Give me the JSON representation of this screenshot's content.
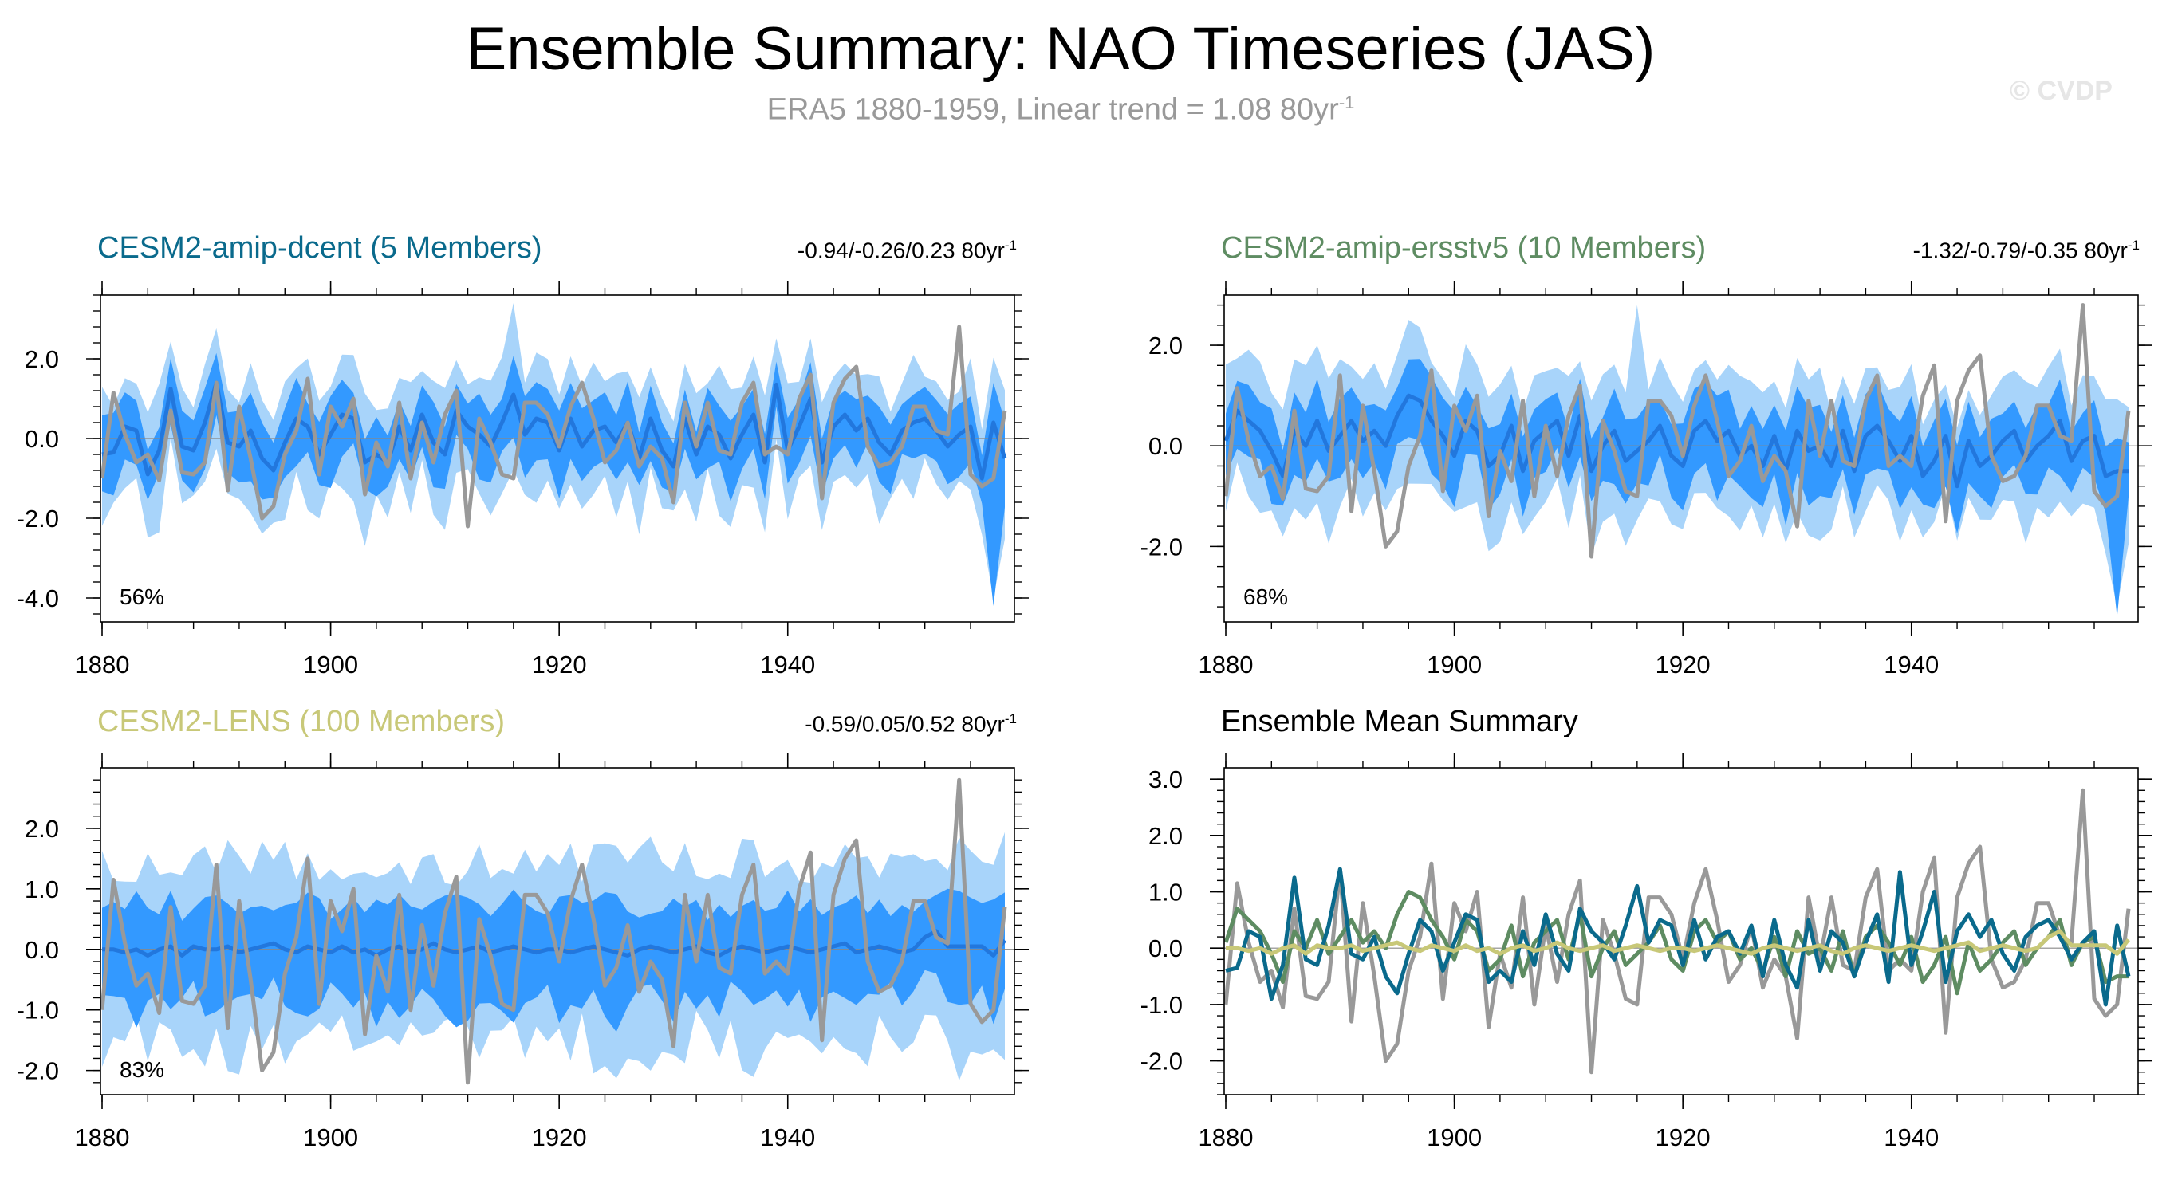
{
  "title": "Ensemble Summary: NAO Timeseries (JAS)",
  "subtitle": {
    "text": "ERA5 1880-1959, Linear trend = 1.08 80yr",
    "sup": "-1"
  },
  "watermark": "© CVDP",
  "colors": {
    "obs": "#999999",
    "dcent": "#0a6a8c",
    "ersst": "#5e8c62",
    "lens": "#c8c878",
    "band_outer": "#a8d4fa",
    "band_inner": "#3399ff",
    "ens_mean": "#2277dd"
  },
  "obs_series": [
    -1.0,
    1.15,
    0.1,
    -0.6,
    -0.4,
    -1.05,
    0.7,
    -0.85,
    -0.9,
    -0.6,
    1.4,
    -1.3,
    0.8,
    -0.5,
    -2.0,
    -1.7,
    -0.4,
    0.2,
    1.5,
    -0.9,
    0.8,
    0.3,
    1.0,
    -1.4,
    -0.1,
    -0.7,
    0.9,
    -1.0,
    0.4,
    -0.6,
    0.6,
    1.2,
    -2.2,
    0.5,
    -0.1,
    -0.9,
    -1.0,
    0.9,
    0.9,
    0.6,
    -0.2,
    0.8,
    1.4,
    0.5,
    -0.6,
    -0.3,
    0.4,
    -0.7,
    -0.2,
    -0.5,
    -1.6,
    0.9,
    -0.2,
    0.9,
    -0.3,
    -0.4,
    0.9,
    1.4,
    -0.4,
    -0.2,
    -0.4,
    1.0,
    1.6,
    -1.5,
    0.9,
    1.5,
    1.8,
    -0.2,
    -0.7,
    -0.6,
    -0.2,
    0.8,
    0.8,
    0.2,
    0.1,
    2.8,
    -0.9,
    -1.2,
    -1.0,
    0.7
  ],
  "panels": [
    {
      "id": "dcent",
      "title": "CESM2-amip-dcent (5 Members)",
      "trend": {
        "text": "-0.94/-0.26/0.23 80yr",
        "sup": "-1"
      },
      "percent": "56%",
      "chart_data": {
        "type": "area",
        "x_range": [
          1880,
          1959
        ],
        "ylim": [
          -4.6,
          3.6
        ],
        "yticks": [
          {
            "v": 2.0,
            "label": "2.0"
          },
          {
            "v": 0.0,
            "label": "0.0"
          },
          {
            "v": -2.0,
            "label": "-2.0"
          },
          {
            "v": -4.0,
            "label": "-4.0"
          }
        ],
        "xticks": [
          {
            "v": 1880,
            "label": "1880"
          },
          {
            "v": 1900,
            "label": "1900"
          },
          {
            "v": 1920,
            "label": "1920"
          },
          {
            "v": 1940,
            "label": "1940"
          }
        ],
        "series": [
          {
            "values": [
              -0.4,
              -0.35,
              0.3,
              0.2,
              -0.9,
              -0.3,
              1.25,
              -0.2,
              -0.3,
              0.4,
              1.4,
              -0.1,
              -0.2,
              0.2,
              -0.5,
              -0.8,
              -0.1,
              0.5,
              0.3,
              -0.4,
              0.1,
              0.6,
              0.5,
              -0.6,
              -0.4,
              -0.6,
              0.3,
              -0.3,
              0.6,
              -0.1,
              -0.4,
              0.7,
              0.3,
              0.1,
              -0.2,
              0.4,
              1.1,
              0.1,
              0.5,
              0.4,
              -0.3,
              0.5,
              -0.2,
              0.2,
              0.3,
              -0.1,
              0.4,
              -0.5,
              0.5,
              -0.3,
              -0.7,
              0.5,
              -0.4,
              0.3,
              0.1,
              -0.5,
              0.1,
              0.6,
              -0.6,
              1.35,
              -0.3,
              0.3,
              1.0,
              -0.6,
              0.3,
              0.6,
              0.2,
              0.5,
              -0.1,
              -0.4,
              0.2,
              0.4,
              0.5,
              0.2,
              -0.2,
              0.1,
              0.3,
              -1.0,
              0.4,
              -0.5
            ]
          }
        ],
        "ensemble_bands": {
          "inner_halfwidth": 0.8,
          "outer_halfwidth": 1.4,
          "inner_min": -4.2,
          "outer_max": 3.4
        }
      }
    },
    {
      "id": "ersst",
      "title": "CESM2-amip-ersstv5 (10 Members)",
      "trend": {
        "text": "-1.32/-0.79/-0.35 80yr",
        "sup": "-1"
      },
      "percent": "68%",
      "chart_data": {
        "type": "area",
        "x_range": [
          1880,
          1959
        ],
        "ylim": [
          -3.5,
          3.0
        ],
        "yticks": [
          {
            "v": 2.0,
            "label": "2.0"
          },
          {
            "v": 0.0,
            "label": "0.0"
          },
          {
            "v": -2.0,
            "label": "-2.0"
          }
        ],
        "xticks": [
          {
            "v": 1880,
            "label": "1880"
          },
          {
            "v": 1900,
            "label": "1900"
          },
          {
            "v": 1920,
            "label": "1920"
          },
          {
            "v": 1940,
            "label": "1940"
          }
        ],
        "series": [
          {
            "values": [
              0.1,
              0.7,
              0.5,
              0.3,
              -0.1,
              -0.6,
              0.3,
              0.0,
              0.5,
              -0.1,
              0.2,
              0.5,
              0.1,
              0.3,
              0.0,
              0.6,
              1.0,
              0.9,
              0.5,
              0.2,
              -0.2,
              0.5,
              0.3,
              -0.4,
              -0.2,
              0.4,
              -0.5,
              0.1,
              0.3,
              0.5,
              -0.2,
              0.6,
              -0.5,
              0.0,
              0.3,
              -0.3,
              -0.1,
              0.1,
              0.4,
              -0.2,
              -0.4,
              0.3,
              0.5,
              0.1,
              0.3,
              -0.2,
              0.0,
              -0.4,
              0.2,
              -0.5,
              0.3,
              -0.1,
              0.0,
              -0.4,
              0.3,
              -0.5,
              0.2,
              0.4,
              0.1,
              -0.3,
              0.2,
              -0.6,
              -0.3,
              0.2,
              -0.8,
              0.1,
              -0.4,
              -0.2,
              0.1,
              0.3,
              -0.3,
              0.0,
              0.2,
              0.5,
              -0.3,
              0.1,
              0.2,
              -0.6,
              -0.5,
              -0.5
            ]
          }
        ],
        "ensemble_bands": {
          "inner_halfwidth": 0.7,
          "outer_halfwidth": 1.3,
          "inner_min": -3.4,
          "outer_max": 2.8
        }
      }
    },
    {
      "id": "lens",
      "title": "CESM2-LENS (100 Members)",
      "trend": {
        "text": "-0.59/0.05/0.52 80yr",
        "sup": "-1"
      },
      "percent": "83%",
      "chart_data": {
        "type": "area",
        "x_range": [
          1880,
          1959
        ],
        "ylim": [
          -2.4,
          3.0
        ],
        "yticks": [
          {
            "v": 2.0,
            "label": "2.0"
          },
          {
            "v": 1.0,
            "label": "1.0"
          },
          {
            "v": 0.0,
            "label": "0.0"
          },
          {
            "v": -1.0,
            "label": "-1.0"
          },
          {
            "v": -2.0,
            "label": "-2.0"
          }
        ],
        "xticks": [
          {
            "v": 1880,
            "label": "1880"
          },
          {
            "v": 1900,
            "label": "1900"
          },
          {
            "v": 1920,
            "label": "1920"
          },
          {
            "v": 1940,
            "label": "1940"
          }
        ],
        "series": [
          {
            "values": [
              0.0,
              0.0,
              -0.05,
              0.0,
              -0.1,
              0.0,
              0.05,
              -0.1,
              0.05,
              0.0,
              0.0,
              0.05,
              -0.05,
              0.0,
              0.05,
              0.1,
              0.0,
              -0.05,
              0.05,
              0.0,
              -0.05,
              0.05,
              -0.05,
              0.0,
              -0.1,
              0.0,
              0.05,
              -0.05,
              0.0,
              0.1,
              0.0,
              -0.05,
              0.0,
              0.05,
              -0.05,
              0.0,
              0.05,
              0.0,
              -0.05,
              0.0,
              0.0,
              -0.05,
              0.0,
              0.05,
              0.0,
              -0.05,
              -0.1,
              0.0,
              0.05,
              0.0,
              -0.05,
              0.0,
              0.05,
              -0.05,
              -0.1,
              0.0,
              0.05,
              0.0,
              -0.05,
              0.0,
              0.05,
              0.0,
              -0.05,
              0.0,
              0.05,
              0.1,
              -0.05,
              0.0,
              0.05,
              0.0,
              -0.05,
              0.0,
              0.2,
              0.3,
              0.05,
              0.05,
              0.05,
              0.05,
              -0.1,
              0.15
            ]
          }
        ],
        "ensemble_bands": {
          "inner_halfwidth": 0.75,
          "outer_halfwidth": 1.45
        }
      }
    }
  ],
  "summary_panel": {
    "title": "Ensemble Mean Summary",
    "chart_data": {
      "type": "line",
      "x_range": [
        1880,
        1959
      ],
      "ylim": [
        -2.6,
        3.2
      ],
      "yticks": [
        {
          "v": 3.0,
          "label": "3.0"
        },
        {
          "v": 2.0,
          "label": "2.0"
        },
        {
          "v": 1.0,
          "label": "1.0"
        },
        {
          "v": 0.0,
          "label": "0.0"
        },
        {
          "v": -1.0,
          "label": "-1.0"
        },
        {
          "v": -2.0,
          "label": "-2.0"
        }
      ],
      "xticks": [
        {
          "v": 1880,
          "label": "1880"
        },
        {
          "v": 1900,
          "label": "1900"
        },
        {
          "v": 1920,
          "label": "1920"
        },
        {
          "v": 1940,
          "label": "1940"
        }
      ]
    }
  }
}
